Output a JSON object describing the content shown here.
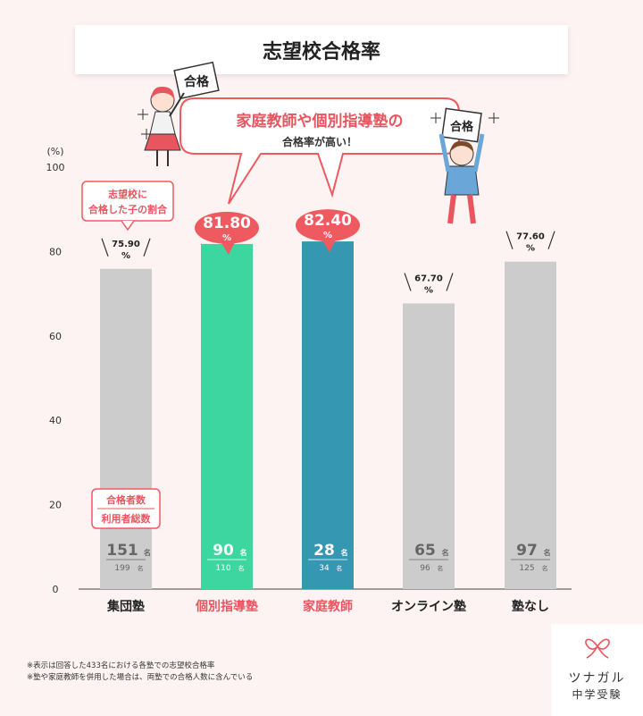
{
  "chart_data": {
    "type": "bar",
    "title": "志望校合格率",
    "ylabel": "(%)",
    "ylim": [
      0,
      100
    ],
    "yticks": [
      0,
      20,
      40,
      60,
      80,
      100
    ],
    "grid": false,
    "categories": [
      "集団塾",
      "個別指導塾",
      "家庭教師",
      "オンライン塾",
      "塾なし"
    ],
    "values": [
      75.9,
      81.8,
      82.4,
      67.7,
      77.6
    ],
    "value_labels": [
      "75.90",
      "81.80",
      "82.40",
      "67.70",
      "77.60"
    ],
    "value_unit": "%",
    "passed_counts": [
      "151",
      "90",
      "28",
      "65",
      "97"
    ],
    "total_counts": [
      "199",
      "110",
      "34",
      "96",
      "125"
    ],
    "count_unit": "名",
    "bar_colors": [
      "#cccccc",
      "#3dd6a0",
      "#3597b2",
      "#cccccc",
      "#cccccc"
    ],
    "label_colors": [
      "#222222",
      "#e8555f",
      "#e8555f",
      "#222222",
      "#222222"
    ],
    "highlighted": [
      false,
      true,
      true,
      false,
      false
    ],
    "highlight_color": "#ee5a5f"
  },
  "annotations": {
    "callout_main_line1": "家庭教師や個別指導塾の",
    "callout_main_line2": "合格率が高い！",
    "rate_note_line1": "志望校に",
    "rate_note_line2": "合格した子の割合",
    "count_note_line1": "合格者数",
    "count_note_line2": "利用者総数",
    "sign_text": "合格"
  },
  "footnotes": {
    "line1": "※表示は回答した433名における各塾での志望校合格率",
    "line2": "※塾や家庭教師を併用した場合は、両塾での合格人数に含んでいる"
  },
  "brand": {
    "name": "ツナガル",
    "sub": "中学受験",
    "accent": "#e8555f"
  }
}
